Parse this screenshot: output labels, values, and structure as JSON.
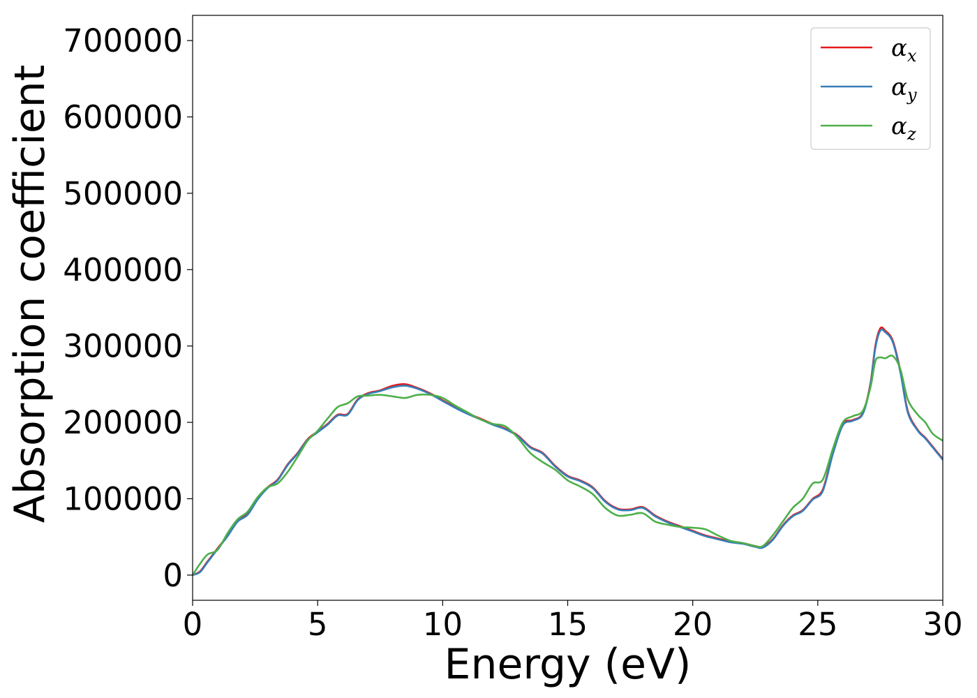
{
  "chart_data": {
    "type": "line",
    "title": "",
    "xlabel": "Energy (eV)",
    "ylabel": "Absorption coefficient",
    "xlim": [
      0,
      30
    ],
    "ylim": [
      -33000,
      733000
    ],
    "xticks": [
      0,
      5,
      10,
      15,
      20,
      25,
      30
    ],
    "yticks": [
      0,
      100000,
      200000,
      300000,
      400000,
      500000,
      600000,
      700000
    ],
    "xtick_labels": [
      "0",
      "5",
      "10",
      "15",
      "20",
      "25",
      "30"
    ],
    "ytick_labels": [
      "0",
      "100000",
      "200000",
      "300000",
      "400000",
      "500000",
      "600000",
      "700000"
    ],
    "grid": false,
    "legend": "top-right",
    "series": [
      {
        "name": "αx",
        "legend_symbol": "α",
        "legend_sub": "x",
        "color": "#e41a1c",
        "x": [
          0,
          0.3,
          0.6,
          1,
          1.4,
          1.8,
          2.2,
          2.6,
          3,
          3.4,
          3.8,
          4.2,
          4.6,
          5,
          5.4,
          5.8,
          6.2,
          6.6,
          7,
          7.5,
          8,
          8.5,
          9,
          9.5,
          10,
          10.5,
          11,
          11.5,
          12,
          12.5,
          13,
          13.5,
          14,
          14.5,
          15,
          15.5,
          16,
          16.5,
          17,
          17.5,
          18,
          18.5,
          19,
          19.5,
          20,
          20.5,
          21,
          21.5,
          22,
          22.5,
          22.8,
          23.2,
          23.6,
          24,
          24.4,
          24.8,
          25.2,
          25.6,
          26,
          26.4,
          26.8,
          27.1,
          27.3,
          27.5,
          27.7,
          28,
          28.3,
          28.6,
          29,
          29.3,
          29.6,
          30
        ],
        "values": [
          0,
          5000,
          18000,
          35000,
          52000,
          72000,
          80000,
          100000,
          115000,
          125000,
          145000,
          160000,
          178000,
          188000,
          198000,
          210000,
          211000,
          230000,
          238000,
          242000,
          248000,
          250000,
          245000,
          238000,
          229000,
          220000,
          212000,
          205000,
          198000,
          192000,
          183000,
          168000,
          160000,
          143000,
          130000,
          124000,
          115000,
          97000,
          87000,
          86000,
          89000,
          78000,
          70000,
          64000,
          58000,
          52000,
          48000,
          44000,
          42000,
          38000,
          37000,
          47000,
          65000,
          78000,
          85000,
          100000,
          112000,
          160000,
          198000,
          203000,
          212000,
          250000,
          300000,
          323000,
          320000,
          307000,
          268000,
          215000,
          190000,
          180000,
          168000,
          152000
        ]
      },
      {
        "name": "αy",
        "legend_symbol": "α",
        "legend_sub": "y",
        "color": "#377eb8",
        "x": [
          0,
          0.3,
          0.6,
          1,
          1.4,
          1.8,
          2.2,
          2.6,
          3,
          3.4,
          3.8,
          4.2,
          4.6,
          5,
          5.4,
          5.8,
          6.2,
          6.6,
          7,
          7.5,
          8,
          8.5,
          9,
          9.5,
          10,
          10.5,
          11,
          11.5,
          12,
          12.5,
          13,
          13.5,
          14,
          14.5,
          15,
          15.5,
          16,
          16.5,
          17,
          17.5,
          18,
          18.5,
          19,
          19.5,
          20,
          20.5,
          21,
          21.5,
          22,
          22.5,
          22.8,
          23.2,
          23.6,
          24,
          24.4,
          24.8,
          25.2,
          25.6,
          26,
          26.4,
          26.8,
          27.1,
          27.3,
          27.5,
          27.7,
          28,
          28.3,
          28.6,
          29,
          29.3,
          29.6,
          30
        ],
        "values": [
          0,
          4000,
          17000,
          34000,
          51000,
          70000,
          79000,
          99000,
          114000,
          124000,
          144000,
          159000,
          177000,
          187000,
          197000,
          209000,
          210000,
          229000,
          237000,
          241000,
          246000,
          248000,
          244000,
          237000,
          228000,
          219000,
          211000,
          204000,
          197000,
          191000,
          182000,
          167000,
          159000,
          142000,
          129000,
          123000,
          114000,
          96000,
          86000,
          85000,
          88000,
          77000,
          69000,
          63000,
          57000,
          51000,
          47000,
          43000,
          41000,
          37000,
          36000,
          46000,
          64000,
          77000,
          84000,
          99000,
          110000,
          158000,
          196000,
          202000,
          211000,
          248000,
          297000,
          320000,
          318000,
          305000,
          266000,
          213000,
          189000,
          179000,
          167000,
          151000
        ]
      },
      {
        "name": "αz",
        "legend_symbol": "α",
        "legend_sub": "z",
        "color": "#4daf4a",
        "x": [
          0,
          0.3,
          0.6,
          1,
          1.4,
          1.8,
          2.2,
          2.6,
          3,
          3.4,
          3.8,
          4.2,
          4.6,
          5,
          5.4,
          5.8,
          6.2,
          6.6,
          7,
          7.5,
          8,
          8.5,
          9,
          9.5,
          10,
          10.5,
          11,
          11.5,
          12,
          12.5,
          13,
          13.5,
          14,
          14.5,
          15,
          15.5,
          16,
          16.5,
          17,
          17.5,
          18,
          18.5,
          19,
          19.5,
          20,
          20.5,
          21,
          21.5,
          22,
          22.5,
          22.8,
          23.2,
          23.6,
          24,
          24.4,
          24.8,
          25.2,
          25.6,
          26,
          26.4,
          26.8,
          27.1,
          27.3,
          27.5,
          27.7,
          28,
          28.3,
          28.6,
          29,
          29.3,
          29.6,
          30
        ],
        "values": [
          0,
          15000,
          27000,
          33000,
          55000,
          73000,
          83000,
          102000,
          115000,
          120000,
          135000,
          155000,
          176000,
          189000,
          205000,
          220000,
          225000,
          234000,
          235000,
          236000,
          234000,
          232000,
          236000,
          236000,
          232000,
          222000,
          213000,
          204000,
          198000,
          195000,
          180000,
          160000,
          148000,
          138000,
          124000,
          116000,
          106000,
          88000,
          78000,
          79000,
          81000,
          70000,
          66000,
          63000,
          62000,
          60000,
          52000,
          45000,
          42000,
          38000,
          38000,
          52000,
          70000,
          88000,
          100000,
          120000,
          125000,
          165000,
          200000,
          208000,
          215000,
          245000,
          280000,
          285000,
          284000,
          287000,
          270000,
          230000,
          210000,
          200000,
          185000,
          176000
        ]
      }
    ]
  }
}
